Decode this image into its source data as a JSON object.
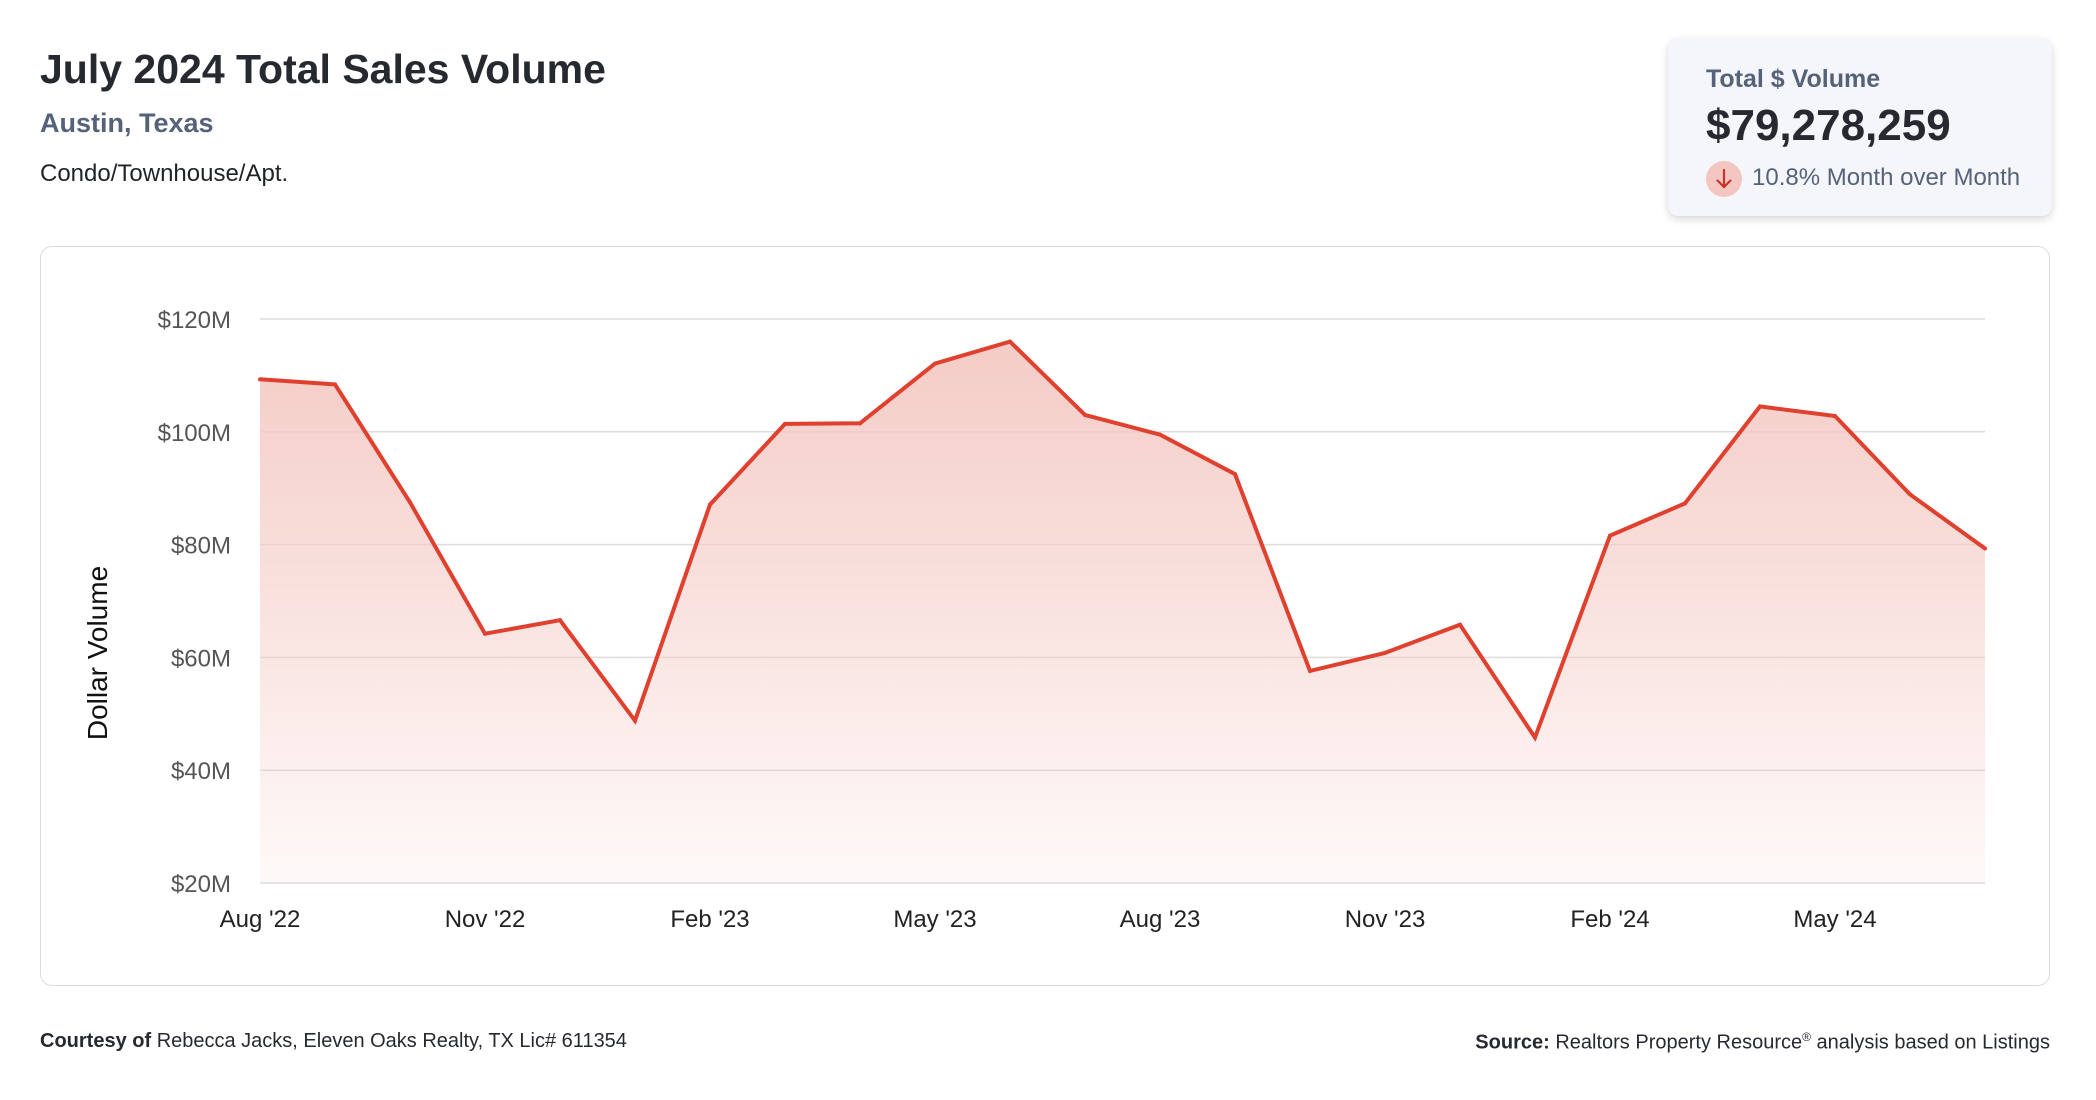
{
  "header": {
    "title": "July 2024 Total Sales Volume",
    "subtitle": "Austin, Texas",
    "category": "Condo/Townhouse/Apt."
  },
  "kpi": {
    "label": "Total $ Volume",
    "value": "$79,278,259",
    "change_text": "10.8% Month over Month",
    "direction_icon": "arrow-down-icon"
  },
  "chart_data": {
    "type": "area",
    "ylabel": "Dollar Volume",
    "ylim": [
      20,
      120
    ],
    "y_unit": "$M",
    "y_ticks": [
      {
        "value": 20,
        "label": "$20M"
      },
      {
        "value": 40,
        "label": "$40M"
      },
      {
        "value": 60,
        "label": "$60M"
      },
      {
        "value": 80,
        "label": "$80M"
      },
      {
        "value": 100,
        "label": "$100M"
      },
      {
        "value": 120,
        "label": "$120M"
      }
    ],
    "x_ticks": [
      {
        "index": 0,
        "label": "Aug '22"
      },
      {
        "index": 3,
        "label": "Nov '22"
      },
      {
        "index": 6,
        "label": "Feb '23"
      },
      {
        "index": 9,
        "label": "May '23"
      },
      {
        "index": 12,
        "label": "Aug '23"
      },
      {
        "index": 15,
        "label": "Nov '23"
      },
      {
        "index": 18,
        "label": "Feb '24"
      },
      {
        "index": 21,
        "label": "May '24"
      }
    ],
    "x": [
      "Aug 2022",
      "Sep 2022",
      "Oct 2022",
      "Nov 2022",
      "Dec 2022",
      "Jan 2023",
      "Feb 2023",
      "Mar 2023",
      "Apr 2023",
      "May 2023",
      "Jun 2023",
      "Jul 2023",
      "Aug 2023",
      "Sep 2023",
      "Oct 2023",
      "Nov 2023",
      "Dec 2023",
      "Jan 2024",
      "Feb 2024",
      "Mar 2024",
      "Apr 2024",
      "May 2024",
      "Jun 2024",
      "Jul 2024"
    ],
    "values": [
      109.3,
      108.4,
      87.5,
      64.2,
      66.6,
      48.8,
      87.1,
      101.4,
      101.5,
      112.1,
      116.0,
      103.0,
      99.5,
      92.5,
      57.6,
      60.8,
      65.8,
      45.8,
      81.6,
      87.3,
      104.5,
      102.8,
      88.9,
      79.3
    ],
    "grid": true,
    "legend": "none",
    "line_color": "#e0402e",
    "fill_color": "#f4c9c3"
  },
  "footer": {
    "courtesy_label": "Courtesy of",
    "courtesy_text": "Rebecca Jacks, Eleven Oaks Realty, TX Lic# 611354",
    "source_label": "Source:",
    "source_text": "Realtors Property Resource",
    "source_mark": "®",
    "source_suffix": "analysis based on Listings"
  }
}
